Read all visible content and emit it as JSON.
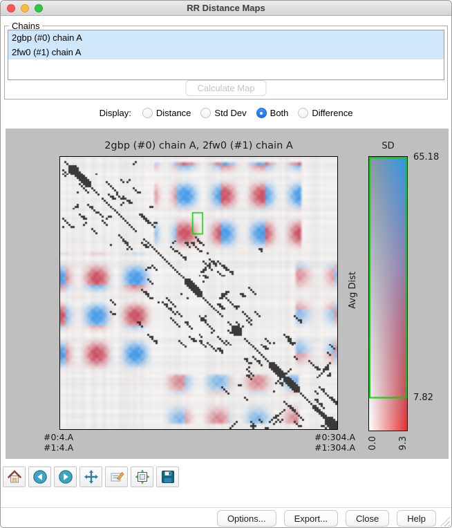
{
  "window": {
    "title": "RR Distance Maps"
  },
  "chains_panel": {
    "label": "Chains",
    "items": [
      {
        "label": "2gbp (#0) chain A",
        "selected": true
      },
      {
        "label": "2fw0 (#1) chain A",
        "selected": true
      }
    ],
    "calculate_button": {
      "label": "Calculate Map",
      "enabled": false
    }
  },
  "display_row": {
    "label": "Display:",
    "options": [
      {
        "label": "Distance",
        "selected": false
      },
      {
        "label": "Std Dev",
        "selected": false
      },
      {
        "label": "Both",
        "selected": true
      },
      {
        "label": "Difference",
        "selected": false
      }
    ]
  },
  "chart_data": {
    "type": "heatmap",
    "title": "2gbp (#0) chain A, 2fw0 (#1) chain A",
    "corner_labels": {
      "left": [
        "#0:4.A",
        "#1:4.A"
      ],
      "right": [
        "#0:304.A",
        "#1:304.A"
      ]
    },
    "colorbar": {
      "title": "SD",
      "ylabel": "Avg Dist",
      "y_min": 0.0,
      "y_max": 65.18,
      "y_threshold": 7.82,
      "y_tick_labels": [
        "65.18",
        "7.82"
      ],
      "x_min": 0.0,
      "x_max": 9.3,
      "x_tick_labels": [
        "0.0",
        "9.3"
      ]
    },
    "palette": {
      "blue": "#3C96E8",
      "red": "#C9485B",
      "diagonal": "#3A3A3A",
      "figure_bg": "#BFBFBF",
      "highlight_green": "#00D400"
    },
    "pattern_regions": [
      {
        "x0": 0.34,
        "x1": 0.86,
        "y0": 0.02,
        "y1": 0.35,
        "strength": 1.0
      },
      {
        "x0": 0.0,
        "x1": 0.34,
        "y0": 0.35,
        "y1": 0.8,
        "strength": 1.0
      },
      {
        "x0": 0.35,
        "x1": 0.85,
        "y0": 0.8,
        "y1": 0.97,
        "strength": 0.55
      },
      {
        "x0": 0.85,
        "x1": 1.0,
        "y0": 0.38,
        "y1": 0.78,
        "strength": 0.5
      }
    ],
    "highlight_rect": {
      "x": 0.478,
      "y": 0.205,
      "w": 0.036,
      "h": 0.078
    }
  },
  "toolbar": {
    "buttons": [
      {
        "name": "home"
      },
      {
        "name": "back"
      },
      {
        "name": "forward"
      },
      {
        "name": "pan"
      },
      {
        "name": "customize"
      },
      {
        "name": "configure-subplots"
      },
      {
        "name": "save"
      }
    ]
  },
  "footer": {
    "buttons": [
      {
        "label": "Options..."
      },
      {
        "label": "Export..."
      },
      {
        "label": "Close"
      },
      {
        "label": "Help"
      }
    ]
  }
}
